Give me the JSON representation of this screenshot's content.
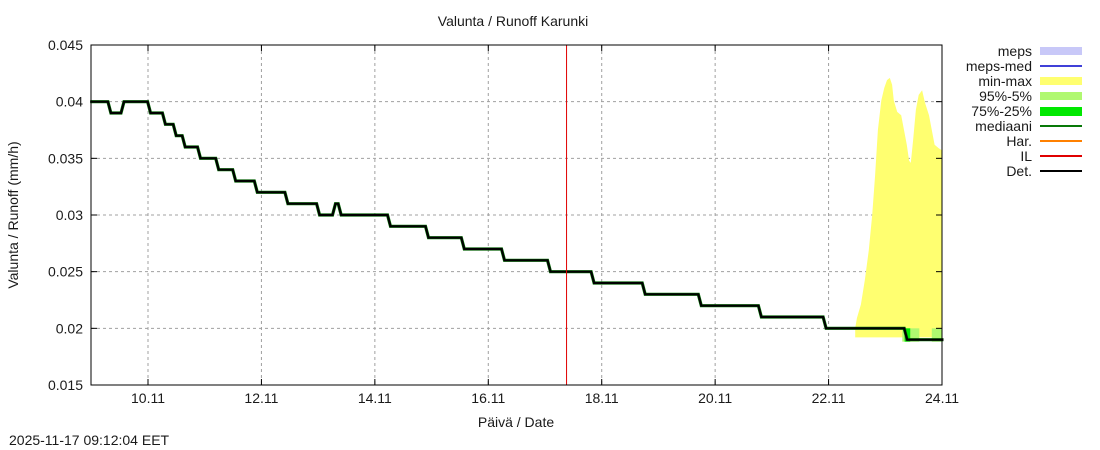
{
  "chart_data": {
    "type": "line",
    "title": "Valunta / Runoff  Karunki",
    "xlabel": "Päivä / Date",
    "ylabel": "Valunta / Runoff (mm/h)",
    "timestamp": "2025-11-17 09:12:04 EET",
    "xlim_days": [
      8.98,
      24.0
    ],
    "ylim": [
      0.015,
      0.045
    ],
    "yticks": [
      "0.015",
      "0.02",
      "0.025",
      "0.03",
      "0.035",
      "0.04",
      "0.045"
    ],
    "ytick_values": [
      0.015,
      0.02,
      0.025,
      0.03,
      0.035,
      0.04,
      0.045
    ],
    "xticks": [
      "10.11",
      "12.11",
      "14.11",
      "16.11",
      "18.11",
      "20.11",
      "22.11",
      "24.11"
    ],
    "xtick_days": [
      10,
      12,
      14,
      16,
      18,
      20,
      22,
      24
    ],
    "grid": true,
    "current_time_day": 17.38,
    "legend_position": "right-outside",
    "legend": [
      {
        "label": "meps",
        "color": "#c8c8f8",
        "style": "band"
      },
      {
        "label": "meps-med",
        "color": "#4040d8",
        "style": "line"
      },
      {
        "label": "min-max",
        "color": "#ffff70",
        "style": "band"
      },
      {
        "label": "95%-5%",
        "color": "#b0f870",
        "style": "band"
      },
      {
        "label": "75%-25%",
        "color": "#00e800",
        "style": "band"
      },
      {
        "label": "mediaani",
        "color": "#087808",
        "style": "line"
      },
      {
        "label": "Har.",
        "color": "#ff8000",
        "style": "line"
      },
      {
        "label": "IL",
        "color": "#e00000",
        "style": "line"
      },
      {
        "label": "Det.",
        "color": "#000000",
        "style": "line"
      }
    ],
    "series": [
      {
        "name": "Det.",
        "color": "#000000",
        "steps_day_value": [
          [
            8.98,
            0.04
          ],
          [
            9.32,
            0.039
          ],
          [
            9.55,
            0.04
          ],
          [
            10.02,
            0.039
          ],
          [
            10.28,
            0.038
          ],
          [
            10.47,
            0.037
          ],
          [
            10.63,
            0.036
          ],
          [
            10.9,
            0.035
          ],
          [
            11.22,
            0.034
          ],
          [
            11.52,
            0.033
          ],
          [
            11.9,
            0.032
          ],
          [
            12.44,
            0.031
          ],
          [
            13.0,
            0.03
          ],
          [
            13.28,
            0.031
          ],
          [
            13.38,
            0.03
          ],
          [
            14.25,
            0.029
          ],
          [
            14.92,
            0.028
          ],
          [
            15.55,
            0.027
          ],
          [
            16.26,
            0.026
          ],
          [
            17.07,
            0.025
          ],
          [
            17.84,
            0.024
          ],
          [
            18.74,
            0.023
          ],
          [
            19.73,
            0.022
          ],
          [
            20.79,
            0.021
          ],
          [
            21.93,
            0.02
          ],
          [
            23.36,
            0.019
          ],
          [
            24.0,
            0.019
          ]
        ]
      },
      {
        "name": "min-max",
        "color": "#ffff70",
        "upper_day_value": [
          [
            22.47,
            0.02
          ],
          [
            22.5,
            0.0209
          ],
          [
            22.57,
            0.0221
          ],
          [
            22.64,
            0.0243
          ],
          [
            22.71,
            0.0269
          ],
          [
            22.77,
            0.03
          ],
          [
            22.82,
            0.0335
          ],
          [
            22.87,
            0.0375
          ],
          [
            22.93,
            0.0401
          ],
          [
            22.98,
            0.0412
          ],
          [
            23.03,
            0.0419
          ],
          [
            23.08,
            0.0421
          ],
          [
            23.12,
            0.0415
          ],
          [
            23.15,
            0.0401
          ],
          [
            23.21,
            0.0391
          ],
          [
            23.28,
            0.0388
          ],
          [
            23.33,
            0.0375
          ],
          [
            23.38,
            0.0362
          ],
          [
            23.42,
            0.0348
          ],
          [
            23.45,
            0.0346
          ],
          [
            23.49,
            0.0366
          ],
          [
            23.54,
            0.0393
          ],
          [
            23.59,
            0.0406
          ],
          [
            23.65,
            0.041
          ],
          [
            23.7,
            0.0399
          ],
          [
            23.77,
            0.0388
          ],
          [
            23.82,
            0.0375
          ],
          [
            23.87,
            0.0362
          ],
          [
            23.94,
            0.0359
          ],
          [
            24.0,
            0.0357
          ]
        ],
        "lower_value": 0.0192
      },
      {
        "name": "95%-5%",
        "color": "#b0f870",
        "segments_day": [
          [
            23.3,
            23.42
          ],
          [
            23.42,
            23.6
          ],
          [
            23.82,
            24.0
          ]
        ],
        "range": [
          0.019,
          0.02
        ]
      },
      {
        "name": "75%-25%",
        "color": "#00e800",
        "segments_day": [
          [
            23.34,
            23.44
          ]
        ],
        "range": [
          0.019,
          0.02
        ]
      },
      {
        "name": "IL",
        "color": "#e00000",
        "note": "vertical current-time marker at ~17.38"
      }
    ]
  }
}
